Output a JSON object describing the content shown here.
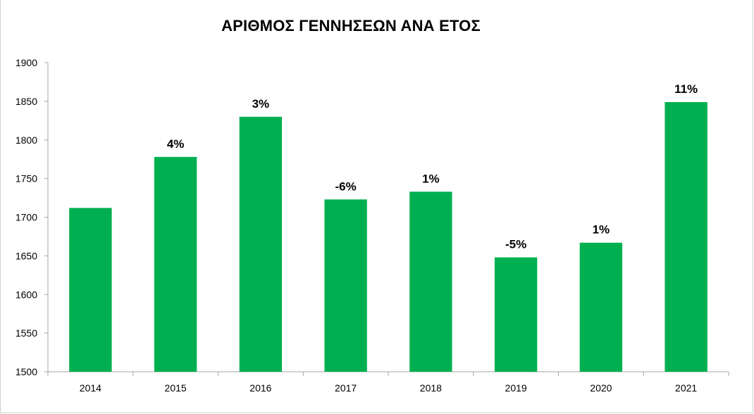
{
  "chart_data": {
    "type": "bar",
    "title": "ΑΡΙΘΜΟΣ ΓΕΝΝΗΣΕΩΝ ΑΝΑ ΕΤΟΣ",
    "xlabel": "",
    "ylabel": "",
    "categories": [
      "2014",
      "2015",
      "2016",
      "2017",
      "2018",
      "2019",
      "2020",
      "2021"
    ],
    "values": [
      1712,
      1778,
      1830,
      1723,
      1733,
      1648,
      1667,
      1849
    ],
    "data_labels": [
      "",
      "4%",
      "3%",
      "-6%",
      "1%",
      "-5%",
      "1%",
      "11%"
    ],
    "ylim": [
      1500,
      1900
    ],
    "yticks": [
      "1500",
      "1550",
      "1600",
      "1650",
      "1700",
      "1750",
      "1800",
      "1850",
      "1900"
    ],
    "grid": false,
    "legend": "none",
    "bar_color": "#00B050"
  }
}
